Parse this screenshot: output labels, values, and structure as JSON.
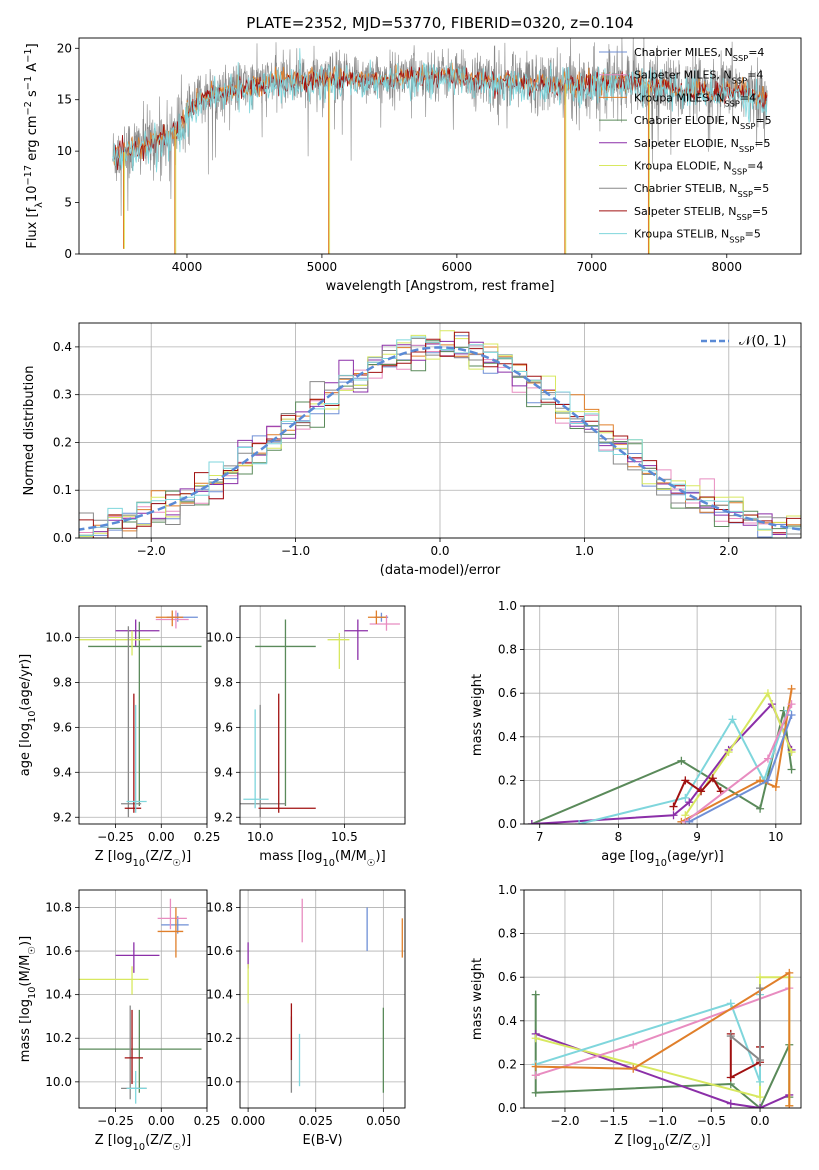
{
  "figure": {
    "title": "PLATE=2352, MJD=53770, FIBERID=0320, z=0.104"
  },
  "colors": {
    "chabrier_miles": "#6f8fd6",
    "salpeter_miles": "#e88cc0",
    "kroupa_miles": "#e07f2a",
    "chabrier_elodie": "#5a8a5a",
    "salpeter_elodie": "#8b2fa8",
    "kroupa_elodie": "#d8e860",
    "chabrier_stelib": "#888888",
    "salpeter_stelib": "#a01010",
    "kroupa_stelib": "#7fd6dc",
    "normal_curve": "#5a8ad6",
    "grid": "#b0b0b0"
  },
  "chart_data": [
    {
      "id": "spectrum",
      "type": "line",
      "title": "PLATE=2352, MJD=53770, FIBERID=0320, z=0.104",
      "xlabel": "wavelength [Angstrom, rest frame]",
      "ylabel": "Flux [f_λ10^-17 erg cm^-2 s^-1 A^-1]",
      "xlim": [
        3200,
        8550
      ],
      "ylim": [
        0,
        21
      ],
      "xticks": [
        4000,
        5000,
        6000,
        7000,
        8000
      ],
      "yticks": [
        0,
        5,
        10,
        15,
        20
      ],
      "grid": false,
      "legend_position": "right",
      "legend": [
        "Chabrier MILES, N_SSP=4",
        "Salpeter MILES, N_SSP=4",
        "Kroupa MILES, N_SSP=4",
        "Chabrier ELODIE, N_SSP=5",
        "Salpeter ELODIE, N_SSP=5",
        "Kroupa ELODIE, N_SSP=4",
        "Chabrier STELIB, N_SSP=5",
        "Salpeter STELIB, N_SSP=5",
        "Kroupa STELIB, N_SSP=5"
      ],
      "data_continuum": {
        "x": [
          3450,
          3550,
          3650,
          3750,
          3850,
          3950,
          4050,
          4150,
          4300,
          4500,
          4700,
          4900,
          5100,
          5300,
          5500,
          5700,
          5900,
          6100,
          6300,
          6500,
          6700,
          6900,
          7100,
          7300,
          7500,
          7700,
          7900,
          8100,
          8300
        ],
        "y": [
          9.5,
          10.0,
          10.5,
          11.0,
          11.5,
          12.5,
          14.5,
          15.5,
          16.0,
          16.5,
          17.0,
          17.0,
          17.2,
          17.2,
          17.0,
          17.5,
          17.5,
          17.0,
          17.0,
          16.8,
          16.5,
          16.5,
          16.8,
          16.8,
          16.3,
          16.0,
          15.8,
          16.0,
          15.0
        ]
      },
      "spikes": [
        {
          "x": 3530,
          "y": 0.5
        },
        {
          "x": 3910,
          "y": 0
        },
        {
          "x": 5050,
          "y": 0
        },
        {
          "x": 6800,
          "y": 0
        },
        {
          "x": 7420,
          "y": 0
        }
      ]
    },
    {
      "id": "residuals",
      "type": "bar",
      "subtype": "step-histogram",
      "xlabel": "(data-model)/error",
      "ylabel": "Normed distribution",
      "xlim": [
        -2.5,
        2.5
      ],
      "ylim": [
        0,
        0.45
      ],
      "xticks": [
        -2,
        -1,
        0,
        1,
        2
      ],
      "yticks": [
        0.0,
        0.1,
        0.2,
        0.3,
        0.4
      ],
      "grid": true,
      "legend_position": "top-right",
      "legend": [
        "𝒩(0, 1)"
      ],
      "reference_curve": "normal(0,1)"
    },
    {
      "id": "Z_age",
      "type": "scatter",
      "subtype": "errorbar",
      "xlabel": "Z [log10(Z/Z☉)]",
      "ylabel": "age  [log10(age/yr)]",
      "xlim": [
        -0.45,
        0.25
      ],
      "ylim": [
        9.17,
        10.14
      ],
      "xticks": [
        -0.25,
        0.0,
        0.25
      ],
      "yticks": [
        9.2,
        9.4,
        9.6,
        9.8,
        10.0
      ],
      "grid": true,
      "points": [
        {
          "c": "chabrier_miles",
          "x": 0.09,
          "y": 10.09,
          "x0": 0.03,
          "x1": 0.2,
          "y0": 10.07,
          "y1": 10.11
        },
        {
          "c": "salpeter_miles",
          "x": 0.08,
          "y": 10.08,
          "x0": -0.03,
          "x1": 0.15,
          "y0": 10.04,
          "y1": 10.12
        },
        {
          "c": "kroupa_miles",
          "x": 0.06,
          "y": 10.09,
          "x0": -0.03,
          "x1": 0.12,
          "y0": 10.05,
          "y1": 10.12
        },
        {
          "c": "chabrier_elodie",
          "x": -0.12,
          "y": 9.96,
          "x0": -0.4,
          "x1": 0.22,
          "y0": 9.25,
          "y1": 10.07
        },
        {
          "c": "salpeter_elodie",
          "x": -0.14,
          "y": 10.03,
          "x0": -0.25,
          "x1": -0.01,
          "y0": 9.96,
          "y1": 10.08
        },
        {
          "c": "kroupa_elodie",
          "x": -0.16,
          "y": 9.99,
          "x0": -0.45,
          "x1": -0.06,
          "y0": 9.92,
          "y1": 10.03
        },
        {
          "c": "chabrier_stelib",
          "x": -0.18,
          "y": 9.26,
          "x0": -0.22,
          "x1": -0.11,
          "y0": 9.2,
          "y1": 10.05
        },
        {
          "c": "salpeter_stelib",
          "x": -0.15,
          "y": 9.24,
          "x0": -0.2,
          "x1": -0.11,
          "y0": 9.22,
          "y1": 9.75
        },
        {
          "c": "kroupa_stelib",
          "x": -0.14,
          "y": 9.27,
          "x0": -0.19,
          "x1": -0.08,
          "y0": 9.22,
          "y1": 9.7
        }
      ]
    },
    {
      "id": "mass_age",
      "type": "scatter",
      "subtype": "errorbar",
      "xlabel": "mass [log10(M/M☉)]",
      "ylabel": "",
      "xlim": [
        9.88,
        10.86
      ],
      "ylim": [
        9.17,
        10.14
      ],
      "xticks": [
        10.0,
        10.5
      ],
      "yticks": [
        9.2,
        9.4,
        9.6,
        9.8,
        10.0
      ],
      "grid": true,
      "points": [
        {
          "c": "chabrier_miles",
          "x": 10.72,
          "y": 10.09,
          "x0": 10.68,
          "x1": 10.76,
          "y0": 10.07,
          "y1": 10.11
        },
        {
          "c": "salpeter_miles",
          "x": 10.75,
          "y": 10.06,
          "x0": 10.65,
          "x1": 10.83,
          "y0": 10.03,
          "y1": 10.1
        },
        {
          "c": "kroupa_miles",
          "x": 10.69,
          "y": 10.09,
          "x0": 10.64,
          "x1": 10.75,
          "y0": 10.06,
          "y1": 10.12
        },
        {
          "c": "chabrier_elodie",
          "x": 10.15,
          "y": 9.96,
          "x0": 9.97,
          "x1": 10.33,
          "y0": 9.25,
          "y1": 10.08
        },
        {
          "c": "salpeter_elodie",
          "x": 10.58,
          "y": 10.03,
          "x0": 10.5,
          "x1": 10.64,
          "y0": 9.9,
          "y1": 10.08
        },
        {
          "c": "kroupa_elodie",
          "x": 10.47,
          "y": 9.99,
          "x0": 10.4,
          "x1": 10.53,
          "y0": 9.86,
          "y1": 10.02
        },
        {
          "c": "chabrier_stelib",
          "x": 10.0,
          "y": 9.26,
          "x0": 9.87,
          "x1": 10.15,
          "y0": 9.2,
          "y1": 9.7
        },
        {
          "c": "salpeter_stelib",
          "x": 10.11,
          "y": 9.24,
          "x0": 9.99,
          "x1": 10.33,
          "y0": 9.22,
          "y1": 9.75
        },
        {
          "c": "kroupa_stelib",
          "x": 9.97,
          "y": 9.28,
          "x0": 9.9,
          "x1": 10.05,
          "y0": 9.24,
          "y1": 9.68
        }
      ]
    },
    {
      "id": "Z_mass",
      "type": "scatter",
      "subtype": "errorbar",
      "xlabel": "Z [log10(Z/Z☉)]",
      "ylabel": "mass [log10(M/M☉)]",
      "xlim": [
        -0.45,
        0.25
      ],
      "ylim": [
        9.88,
        10.88
      ],
      "xticks": [
        -0.25,
        0.0,
        0.25
      ],
      "yticks": [
        10.0,
        10.2,
        10.4,
        10.6,
        10.8
      ],
      "grid": true,
      "points": [
        {
          "c": "chabrier_miles",
          "x": 0.09,
          "y": 10.72,
          "x0": 0.0,
          "x1": 0.15,
          "y0": 10.68,
          "y1": 10.76
        },
        {
          "c": "salpeter_miles",
          "x": 0.05,
          "y": 10.75,
          "x0": -0.02,
          "x1": 0.14,
          "y0": 10.7,
          "y1": 10.84
        },
        {
          "c": "kroupa_miles",
          "x": 0.08,
          "y": 10.69,
          "x0": -0.02,
          "x1": 0.12,
          "y0": 10.57,
          "y1": 10.8
        },
        {
          "c": "chabrier_elodie",
          "x": -0.12,
          "y": 10.15,
          "x0": -0.45,
          "x1": 0.22,
          "y0": 9.95,
          "y1": 10.33
        },
        {
          "c": "salpeter_elodie",
          "x": -0.15,
          "y": 10.58,
          "x0": -0.25,
          "x1": -0.01,
          "y0": 10.5,
          "y1": 10.64
        },
        {
          "c": "kroupa_elodie",
          "x": -0.16,
          "y": 10.47,
          "x0": -0.45,
          "x1": -0.07,
          "y0": 10.4,
          "y1": 10.53
        },
        {
          "c": "chabrier_stelib",
          "x": -0.17,
          "y": 9.97,
          "x0": -0.22,
          "x1": -0.08,
          "y0": 9.92,
          "y1": 10.35
        },
        {
          "c": "salpeter_stelib",
          "x": -0.16,
          "y": 10.11,
          "x0": -0.2,
          "x1": -0.1,
          "y0": 9.99,
          "y1": 10.33
        },
        {
          "c": "kroupa_stelib",
          "x": -0.14,
          "y": 9.97,
          "x0": -0.19,
          "x1": -0.08,
          "y0": 9.9,
          "y1": 10.05
        }
      ]
    },
    {
      "id": "ebv_mass",
      "type": "scatter",
      "subtype": "errorbar",
      "xlabel": "E(B-V)",
      "ylabel": "",
      "xlim": [
        -0.003,
        0.058
      ],
      "ylim": [
        9.88,
        10.88
      ],
      "xticks": [
        0.0,
        0.025,
        0.05
      ],
      "yticks": [
        10.0,
        10.2,
        10.4,
        10.6,
        10.8
      ],
      "grid": true,
      "points": [
        {
          "c": "chabrier_miles",
          "x": 0.044,
          "y": 10.7,
          "y0": 10.6,
          "y1": 10.8
        },
        {
          "c": "salpeter_miles",
          "x": 0.02,
          "y": 10.75,
          "y0": 10.64,
          "y1": 10.84
        },
        {
          "c": "kroupa_miles",
          "x": 0.057,
          "y": 10.66,
          "y0": 10.57,
          "y1": 10.75
        },
        {
          "c": "chabrier_elodie",
          "x": 0.05,
          "y": 10.15,
          "y0": 9.95,
          "y1": 10.34
        },
        {
          "c": "salpeter_elodie",
          "x": 0.0,
          "y": 10.58,
          "y0": 10.52,
          "y1": 10.64
        },
        {
          "c": "kroupa_elodie",
          "x": 0.0,
          "y": 10.45,
          "y0": 10.36,
          "y1": 10.54
        },
        {
          "c": "chabrier_stelib",
          "x": 0.016,
          "y": 10.0,
          "y0": 9.95,
          "y1": 10.3
        },
        {
          "c": "salpeter_stelib",
          "x": 0.016,
          "y": 10.23,
          "y0": 10.1,
          "y1": 10.36
        },
        {
          "c": "kroupa_stelib",
          "x": 0.019,
          "y": 10.07,
          "y0": 9.98,
          "y1": 10.22
        }
      ]
    },
    {
      "id": "age_weight",
      "type": "line",
      "xlabel": "age  [log10(age/yr)]",
      "ylabel": "mass weight",
      "xlim": [
        6.8,
        10.32
      ],
      "ylim": [
        0,
        1.0
      ],
      "xticks": [
        7,
        8,
        9,
        10
      ],
      "yticks": [
        0.0,
        0.2,
        0.4,
        0.6,
        0.8,
        1.0
      ],
      "grid": true,
      "series": [
        {
          "c": "chabrier_elodie",
          "x": [
            6.9,
            8.8,
            9.8,
            10.1,
            10.2
          ],
          "y": [
            0.0,
            0.29,
            0.07,
            0.52,
            0.25
          ]
        },
        {
          "c": "salpeter_elodie",
          "x": [
            6.9,
            8.7,
            8.9,
            9.4,
            9.95,
            10.2
          ],
          "y": [
            0.0,
            0.04,
            0.1,
            0.34,
            0.55,
            0.34
          ]
        },
        {
          "c": "kroupa_elodie",
          "x": [
            8.85,
            9.4,
            9.9,
            10.2
          ],
          "y": [
            0.04,
            0.33,
            0.6,
            0.33
          ]
        },
        {
          "c": "kroupa_stelib",
          "x": [
            7.5,
            8.85,
            9.45,
            9.85,
            10.15
          ],
          "y": [
            0.0,
            0.12,
            0.48,
            0.2,
            0.52
          ]
        },
        {
          "c": "salpeter_stelib",
          "x": [
            8.7,
            8.85,
            9.05,
            9.2,
            9.3
          ],
          "y": [
            0.08,
            0.2,
            0.15,
            0.21,
            0.15
          ]
        },
        {
          "c": "kroupa_miles",
          "x": [
            8.8,
            9.8,
            10.0,
            10.2
          ],
          "y": [
            0.01,
            0.2,
            0.17,
            0.62
          ]
        },
        {
          "c": "salpeter_miles",
          "x": [
            8.85,
            9.9,
            10.2
          ],
          "y": [
            0.01,
            0.3,
            0.55
          ]
        },
        {
          "c": "chabrier_miles",
          "x": [
            8.9,
            9.9,
            10.2
          ],
          "y": [
            0.01,
            0.2,
            0.5
          ]
        }
      ]
    },
    {
      "id": "Z_weight",
      "type": "line",
      "xlabel": "Z [log10(Z/Z☉)]",
      "ylabel": "mass weight",
      "xlim": [
        -2.42,
        0.42
      ],
      "ylim": [
        0,
        1.0
      ],
      "xticks": [
        -2.0,
        -1.5,
        -1.0,
        -0.5,
        0.0
      ],
      "yticks": [
        0.0,
        0.2,
        0.4,
        0.6,
        0.8,
        1.0
      ],
      "grid": true,
      "series": [
        {
          "c": "chabrier_elodie",
          "x": [
            -2.3,
            -2.3,
            -0.3,
            0.0,
            0.3,
            0.3
          ],
          "y": [
            0.52,
            0.07,
            0.11,
            0.0,
            0.29,
            0.05
          ]
        },
        {
          "c": "salpeter_elodie",
          "x": [
            -2.3,
            -0.3,
            0.0,
            0.3
          ],
          "y": [
            0.34,
            0.02,
            0.0,
            0.06
          ]
        },
        {
          "c": "kroupa_elodie",
          "x": [
            -2.3,
            0.0,
            0.0,
            0.3,
            0.3
          ],
          "y": [
            0.32,
            0.05,
            0.6,
            0.6,
            0.01
          ]
        },
        {
          "c": "kroupa_stelib",
          "x": [
            -2.3,
            -0.3,
            0.0,
            0.0
          ],
          "y": [
            0.2,
            0.48,
            0.12,
            0.52
          ]
        },
        {
          "c": "salpeter_stelib",
          "x": [
            -0.3,
            -0.3,
            0.0,
            0.0
          ],
          "y": [
            0.34,
            0.14,
            0.21,
            0.28
          ]
        },
        {
          "c": "salpeter_miles",
          "x": [
            -2.3,
            -1.3,
            0.3
          ],
          "y": [
            0.15,
            0.29,
            0.55
          ]
        },
        {
          "c": "kroupa_miles",
          "x": [
            -2.3,
            -1.3,
            0.3,
            0.3
          ],
          "y": [
            0.19,
            0.18,
            0.62,
            0.01
          ]
        },
        {
          "c": "chabrier_stelib",
          "x": [
            -0.3,
            0.0,
            0.0
          ],
          "y": [
            0.33,
            0.22,
            0.55
          ]
        }
      ]
    }
  ]
}
